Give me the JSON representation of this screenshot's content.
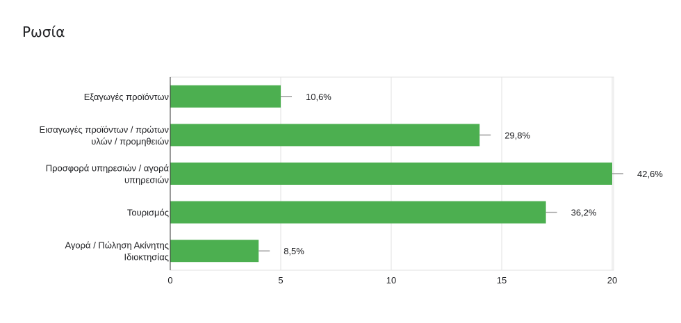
{
  "chart_data": {
    "type": "bar",
    "orientation": "horizontal",
    "title": "Ρωσία",
    "categories": [
      [
        "Εξαγωγές προϊόντων"
      ],
      [
        "Εισαγωγές προϊόντων / πρώτων",
        "υλών / προμηθειών"
      ],
      [
        "Προσφορά υπηρεσιών / αγορά",
        "υπηρεσιών"
      ],
      [
        "Τουρισμός"
      ],
      [
        "Αγορά / Πώληση Ακίνητης",
        "Ιδιοκτησίας"
      ]
    ],
    "values": [
      5,
      14,
      20,
      17,
      4
    ],
    "data_labels": [
      "10,6%",
      "29,8%",
      "42,6%",
      "36,2%",
      "8,5%"
    ],
    "xlim": [
      0,
      20
    ],
    "xticks": [
      0,
      5,
      10,
      15,
      20
    ],
    "grid": true,
    "bar_color": "#4caf50"
  }
}
